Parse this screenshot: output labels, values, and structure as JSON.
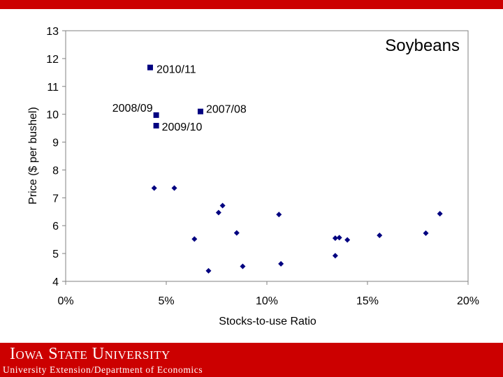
{
  "footer": {
    "university": "Iowa State University",
    "department": "University Extension/Department of Economics"
  },
  "colors": {
    "accent": "#cc0000",
    "marker": "#000080"
  },
  "chart_data": {
    "type": "scatter",
    "title": "Soybeans",
    "xlabel": "Stocks-to-use Ratio",
    "ylabel": "Price ($ per bushel)",
    "xlim": [
      0,
      0.2
    ],
    "ylim": [
      4,
      13
    ],
    "x_ticks": [
      0,
      0.05,
      0.1,
      0.15,
      0.2
    ],
    "x_tick_labels": [
      "0%",
      "5%",
      "10%",
      "15%",
      "20%"
    ],
    "y_ticks": [
      4,
      5,
      6,
      7,
      8,
      9,
      10,
      11,
      12,
      13
    ],
    "y_tick_labels": [
      "4",
      "5",
      "6",
      "7",
      "8",
      "9",
      "10",
      "11",
      "12",
      "13"
    ],
    "grid": false,
    "series": [
      {
        "marker": "diamond",
        "points": [
          {
            "x": 0.044,
            "y": 7.35
          },
          {
            "x": 0.054,
            "y": 7.35
          },
          {
            "x": 0.064,
            "y": 5.52
          },
          {
            "x": 0.071,
            "y": 4.38
          },
          {
            "x": 0.076,
            "y": 6.47
          },
          {
            "x": 0.078,
            "y": 6.72
          },
          {
            "x": 0.085,
            "y": 5.74
          },
          {
            "x": 0.088,
            "y": 4.54
          },
          {
            "x": 0.106,
            "y": 6.4
          },
          {
            "x": 0.107,
            "y": 4.63
          },
          {
            "x": 0.134,
            "y": 5.55
          },
          {
            "x": 0.134,
            "y": 4.92
          },
          {
            "x": 0.136,
            "y": 5.57
          },
          {
            "x": 0.14,
            "y": 5.49
          },
          {
            "x": 0.156,
            "y": 5.65
          },
          {
            "x": 0.179,
            "y": 5.73
          },
          {
            "x": 0.186,
            "y": 6.43
          }
        ]
      },
      {
        "marker": "square",
        "points": [
          {
            "x": 0.042,
            "y": 11.68,
            "label": "2010/11"
          },
          {
            "x": 0.045,
            "y": 9.97,
            "label": "2008/09"
          },
          {
            "x": 0.067,
            "y": 10.1,
            "label": "2007/08"
          },
          {
            "x": 0.045,
            "y": 9.59,
            "label": "2009/10"
          }
        ]
      }
    ]
  }
}
